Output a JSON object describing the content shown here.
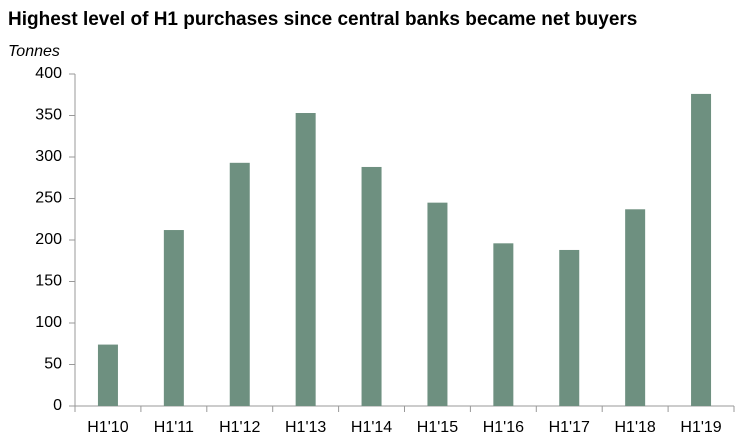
{
  "chart_data": {
    "type": "bar",
    "title": "Highest level of H1 purchases since central banks became net buyers",
    "y_label": "Tonnes",
    "categories": [
      "H1'10",
      "H1'11",
      "H1'12",
      "H1'13",
      "H1'14",
      "H1'15",
      "H1'16",
      "H1'17",
      "H1'18",
      "H1'19"
    ],
    "values": [
      74,
      212,
      293,
      353,
      288,
      245,
      196,
      188,
      237,
      376
    ],
    "color": "#6e9080",
    "ylim": [
      0,
      400
    ],
    "yticks": [
      0,
      50,
      100,
      150,
      200,
      250,
      300,
      350,
      400
    ],
    "grid": false
  }
}
